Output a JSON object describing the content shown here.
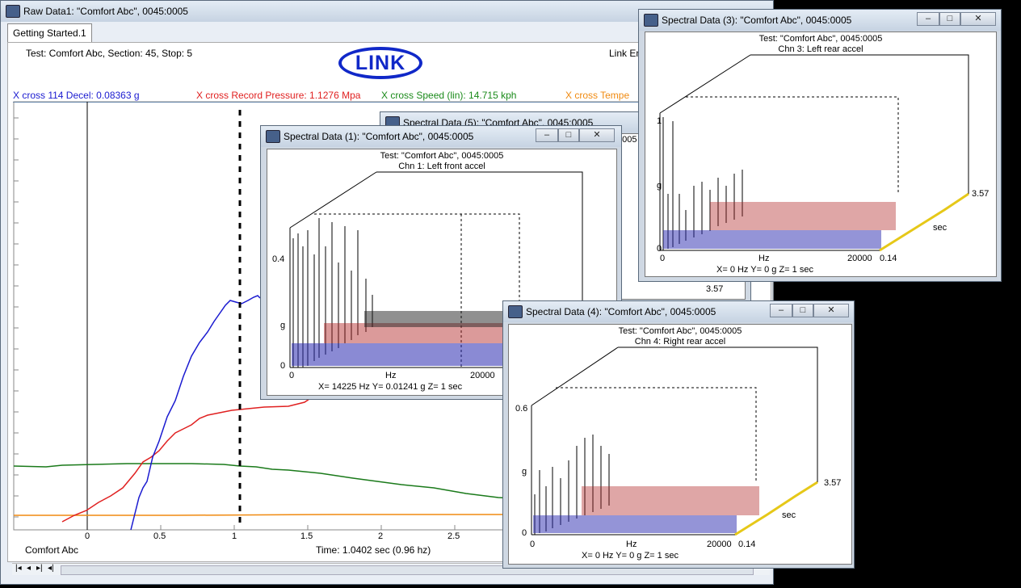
{
  "raw_window": {
    "title": "Raw Data1: \"Comfort Abc\", 0045:0005",
    "tab": "Getting Started.1",
    "test_info": "Test: Comfort Abc, Section: 45, Stop: 5",
    "logo": "LINK",
    "link_label": "Link En",
    "cursor_readouts": [
      {
        "text": "X cross 114 Decel: 0.08363 g",
        "color": "#1a1ad0"
      },
      {
        "text": "X cross Record Pressure: 1.1276 Mpa",
        "color": "#e02020"
      },
      {
        "text": "X cross Speed (lin): 14.715 kph",
        "color": "#1a8a1a"
      },
      {
        "text": "X cross Tempe",
        "color": "#f08a10"
      }
    ],
    "x_ticks": [
      "0",
      "0.5",
      "1",
      "1.5",
      "2",
      "2.5"
    ],
    "legend_name": "Comfort Abc",
    "time_readout": "Time: 1.0402 sec (0.96 hz)",
    "nav_icons": [
      "first-icon",
      "prev-icon",
      "next-icon",
      "last-icon"
    ]
  },
  "spectral_windows": [
    {
      "title": "Spectral Data (5): \"Comfort Abc\", 0045:0005",
      "subtitle_partial": "0005",
      "partial_z_max": "3.57"
    },
    {
      "title": "Spectral Data (1): \"Comfort Abc\", 0045:0005",
      "test_line": "Test: \"Comfort Abc\", 0045:0005",
      "channel": "Chn 1: Left front accel",
      "y_max": "0.4",
      "y_unit": "g",
      "y_min": "0",
      "x_min": "0",
      "x_unit": "Hz",
      "x_max": "20000",
      "readout": "X= 14225 Hz Y= 0.01241 g Z= 1 sec"
    },
    {
      "title": "Spectral Data (3): \"Comfort Abc\", 0045:0005",
      "test_line": "Test: \"Comfort Abc\", 0045:0005",
      "channel": "Chn 3: Left rear accel",
      "y_max": "1",
      "y_unit": "g",
      "y_min": "0",
      "x_min": "0",
      "x_unit": "Hz",
      "x_max": "20000",
      "z_min": "0.14",
      "z_unit": "sec",
      "z_max": "3.57",
      "readout": "X= 0 Hz Y= 0 g Z= 1 sec"
    },
    {
      "title": "Spectral Data (4): \"Comfort Abc\", 0045:0005",
      "test_line": "Test: \"Comfort Abc\", 0045:0005",
      "channel": "Chn 4: Right rear accel",
      "y_max": "0.6",
      "y_unit": "g",
      "y_min": "0",
      "x_min": "0",
      "x_unit": "Hz",
      "x_max": "20000",
      "z_min": "0.14",
      "z_unit": "sec",
      "z_max": "3.57",
      "readout": "X= 0 Hz Y= 0 g Z= 1 sec"
    }
  ],
  "window_buttons": {
    "min": "–",
    "max": "□",
    "close": "✕"
  }
}
